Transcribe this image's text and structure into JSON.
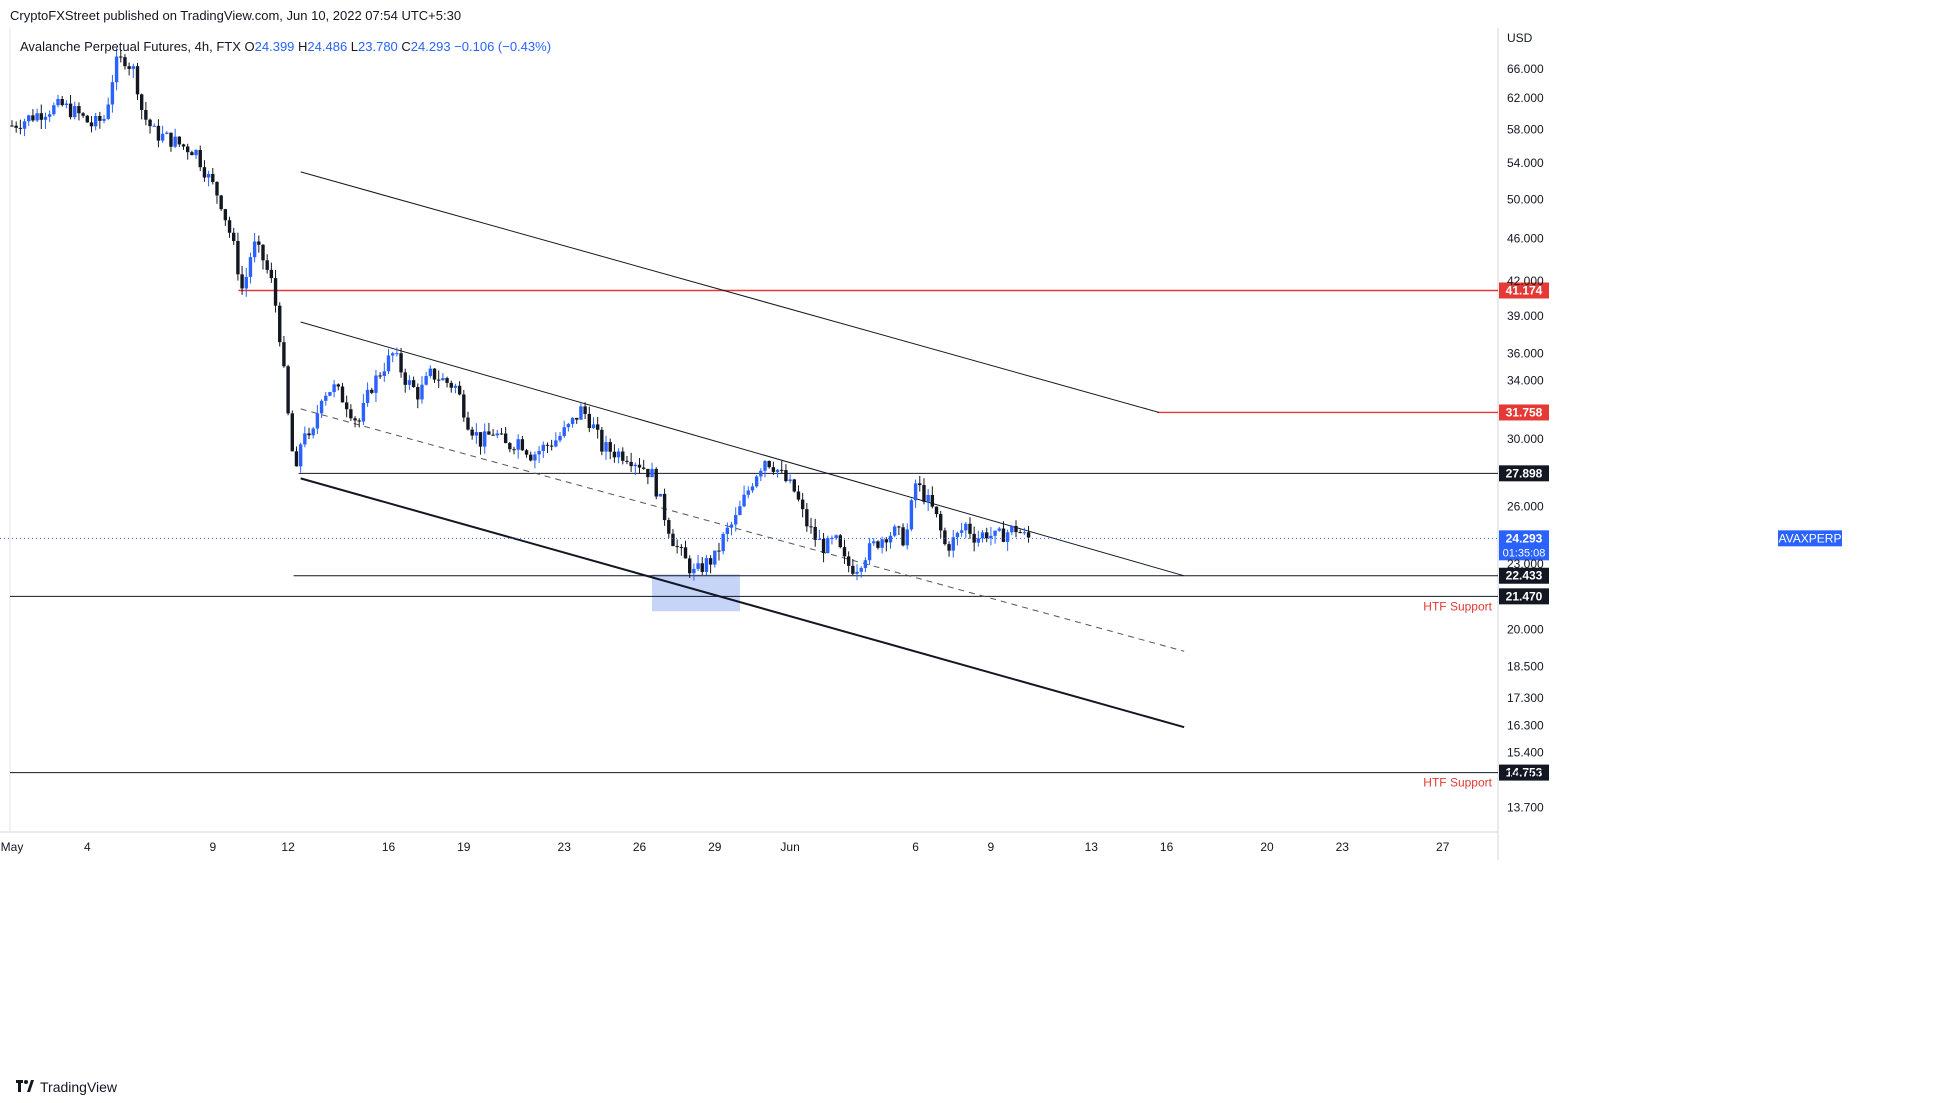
{
  "header": {
    "publish_line": "CryptoFXStreet published on TradingView.com, Jun 10, 2022 07:54 UTC+5:30",
    "symbol_title": "Avalanche Perpetual Futures, 4h, FTX",
    "ohlc": [
      {
        "label": "O",
        "value": "24.399"
      },
      {
        "label": "H",
        "value": "24.486"
      },
      {
        "label": "L",
        "value": "23.780"
      },
      {
        "label": "C",
        "value": "24.293"
      },
      {
        "label": "",
        "value": "−0.106 (−0.43%)"
      }
    ]
  },
  "footer": {
    "logo_text": "TradingView"
  },
  "colors": {
    "up": "#2962ff",
    "down": "#131722",
    "resistance_line": "#e53935",
    "support_label": "#e53935",
    "price_tag_bg": "#2962ff",
    "level_tag_bg": "#131722",
    "highlight_box": "#bbcdf6"
  },
  "chart_data": {
    "type": "candlestick",
    "title": "Avalanche Perpetual Futures, 4h, FTX",
    "currency_label": "USD",
    "y_scale": "log",
    "ylim": [
      13.0,
      72.0
    ],
    "xlim_days_from_may_1": [
      0,
      59
    ],
    "y_ticks": [
      "66.000",
      "62.000",
      "58.000",
      "54.000",
      "50.000",
      "46.000",
      "42.000",
      "39.000",
      "36.000",
      "34.000",
      "30.000",
      "26.000",
      "23.000",
      "20.000",
      "18.500",
      "17.300",
      "16.300",
      "15.400",
      "14.700",
      "13.700"
    ],
    "x_ticks": [
      {
        "label": "May",
        "day": 0.0
      },
      {
        "label": "4",
        "day": 3
      },
      {
        "label": "9",
        "day": 8
      },
      {
        "label": "12",
        "day": 11
      },
      {
        "label": "16",
        "day": 15
      },
      {
        "label": "19",
        "day": 18
      },
      {
        "label": "23",
        "day": 22
      },
      {
        "label": "26",
        "day": 25
      },
      {
        "label": "29",
        "day": 28
      },
      {
        "label": "Jun",
        "day": 31
      },
      {
        "label": "6",
        "day": 36
      },
      {
        "label": "9",
        "day": 39
      },
      {
        "label": "13",
        "day": 43
      },
      {
        "label": "16",
        "day": 46
      },
      {
        "label": "20",
        "day": 50
      },
      {
        "label": "23",
        "day": 53
      },
      {
        "label": "27",
        "day": 57
      }
    ],
    "close_path": [
      [
        0.0,
        58.5
      ],
      [
        0.7,
        59.5
      ],
      [
        1.4,
        60.5
      ],
      [
        2.0,
        61.0
      ],
      [
        2.6,
        60.0
      ],
      [
        3.2,
        58.5
      ],
      [
        3.7,
        59.5
      ],
      [
        4.1,
        66.5
      ],
      [
        4.5,
        67.5
      ],
      [
        4.9,
        65.5
      ],
      [
        5.2,
        60.0
      ],
      [
        5.7,
        57.5
      ],
      [
        6.3,
        56.8
      ],
      [
        6.8,
        56.0
      ],
      [
        7.3,
        55.5
      ],
      [
        7.8,
        52.5
      ],
      [
        8.3,
        50.0
      ],
      [
        8.8,
        45.5
      ],
      [
        9.2,
        41.0
      ],
      [
        9.6,
        45.5
      ],
      [
        10.0,
        44.0
      ],
      [
        10.4,
        41.5
      ],
      [
        10.7,
        37.0
      ],
      [
        11.0,
        31.5
      ],
      [
        11.3,
        27.5
      ],
      [
        11.6,
        31.0
      ],
      [
        11.9,
        29.5
      ],
      [
        12.3,
        33.0
      ],
      [
        12.8,
        33.5
      ],
      [
        13.3,
        32.5
      ],
      [
        13.8,
        31.0
      ],
      [
        14.3,
        33.5
      ],
      [
        14.8,
        35.0
      ],
      [
        15.2,
        36.0
      ],
      [
        15.7,
        34.0
      ],
      [
        16.2,
        33.0
      ],
      [
        16.7,
        34.5
      ],
      [
        17.2,
        34.0
      ],
      [
        17.7,
        33.5
      ],
      [
        18.2,
        31.0
      ],
      [
        18.7,
        29.8
      ],
      [
        19.2,
        30.5
      ],
      [
        19.7,
        29.5
      ],
      [
        20.2,
        30.0
      ],
      [
        20.7,
        29.0
      ],
      [
        21.2,
        29.5
      ],
      [
        21.7,
        30.0
      ],
      [
        22.2,
        30.8
      ],
      [
        22.7,
        32.0
      ],
      [
        23.1,
        31.0
      ],
      [
        23.5,
        29.5
      ],
      [
        24.0,
        29.2
      ],
      [
        24.5,
        29.0
      ],
      [
        25.0,
        28.5
      ],
      [
        25.5,
        27.8
      ],
      [
        26.0,
        25.5
      ],
      [
        26.4,
        24.0
      ],
      [
        26.8,
        23.2
      ],
      [
        27.2,
        22.5
      ],
      [
        27.6,
        23.0
      ],
      [
        28.0,
        23.3
      ],
      [
        28.4,
        24.5
      ],
      [
        28.8,
        25.2
      ],
      [
        29.2,
        26.5
      ],
      [
        29.6,
        27.8
      ],
      [
        30.0,
        28.8
      ],
      [
        30.4,
        28.3
      ],
      [
        30.8,
        27.5
      ],
      [
        31.2,
        26.8
      ],
      [
        31.6,
        25.2
      ],
      [
        32.0,
        24.3
      ],
      [
        32.4,
        23.8
      ],
      [
        32.8,
        24.2
      ],
      [
        33.2,
        23.0
      ],
      [
        33.6,
        22.8
      ],
      [
        34.0,
        23.5
      ],
      [
        34.4,
        24.0
      ],
      [
        34.8,
        24.5
      ],
      [
        35.2,
        24.6
      ],
      [
        35.6,
        24.2
      ],
      [
        36.0,
        27.3
      ],
      [
        36.4,
        26.5
      ],
      [
        36.8,
        25.5
      ],
      [
        37.2,
        23.8
      ],
      [
        37.6,
        24.3
      ],
      [
        38.0,
        25.0
      ],
      [
        38.4,
        24.3
      ],
      [
        38.8,
        24.6
      ],
      [
        39.2,
        24.3
      ],
      [
        39.6,
        24.6
      ],
      [
        40.0,
        24.8
      ],
      [
        40.4,
        24.3
      ],
      [
        40.6,
        24.293
      ]
    ],
    "levels": [
      {
        "label": "41.174",
        "value": 41.174,
        "type": "resistance",
        "from_day": 9.1,
        "to_day": 59
      },
      {
        "label": "31.758",
        "value": 31.758,
        "type": "resistance",
        "from_day": 45.7,
        "to_day": 59
      },
      {
        "label": "27.898",
        "value": 27.898,
        "type": "level",
        "from_day": 11.5,
        "to_day": 59
      },
      {
        "label": "22.433",
        "value": 22.433,
        "type": "level",
        "from_day": 11.3,
        "to_day": 46.7
      },
      {
        "label": "21.470",
        "value": 21.47,
        "type": "support",
        "from_day": 0,
        "to_day": 59,
        "annotation": "HTF Support"
      },
      {
        "label": "14.753",
        "value": 14.753,
        "type": "support",
        "from_day": 0,
        "to_day": 59,
        "annotation": "HTF Support"
      }
    ],
    "trendlines": [
      {
        "name": "upper-outer",
        "from": [
          11.5,
          53.0
        ],
        "to": [
          45.7,
          31.76
        ],
        "style": "solid"
      },
      {
        "name": "channel-top",
        "from": [
          11.5,
          38.5
        ],
        "to": [
          46.7,
          22.43
        ],
        "style": "solid"
      },
      {
        "name": "channel-mid",
        "from": [
          11.5,
          32.0
        ],
        "to": [
          46.7,
          19.1
        ],
        "style": "dashed"
      },
      {
        "name": "channel-bottom",
        "from": [
          11.5,
          27.6
        ],
        "to": [
          46.7,
          16.25
        ],
        "style": "solid-bold"
      }
    ],
    "highlight_box": {
      "x0": 25.5,
      "x1": 29.0,
      "y0": 20.8,
      "y1": 22.5
    },
    "current_price": {
      "symbol": "AVAXPERP",
      "value": "24.293",
      "countdown": "01:35:08"
    }
  }
}
